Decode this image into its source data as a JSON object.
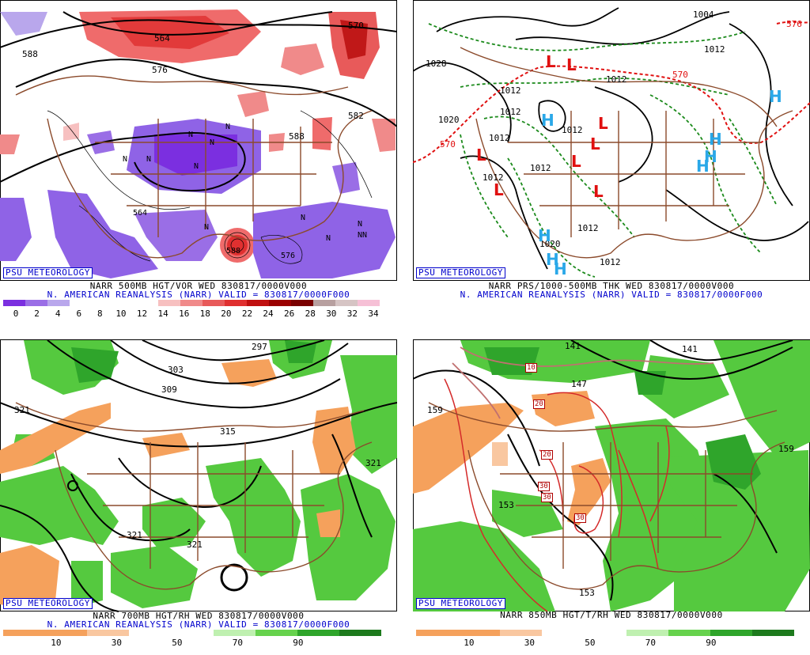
{
  "panels": [
    {
      "id": "p1",
      "badge": "PSU METEOROLOGY",
      "caption_line1": "NARR 500MB HGT/VOR WED 830817/0000V000",
      "caption_line2": "N. AMERICAN REANALYSIS (NARR) VALID = 830817/0000F000",
      "colorbar_colors": [
        "#7b2fe0",
        "#9a6ee6",
        "#b9a7ec",
        "#ffffff",
        "#ffffff",
        "#ffffff",
        "#ffffff",
        "#f7c0c0",
        "#f08a8a",
        "#e85a5a",
        "#e03030",
        "#c01010",
        "#9a0000",
        "#7a0000",
        "#b8a0a0",
        "#d6c4c4",
        "#f6c0d6"
      ],
      "colorbar_labels": [
        "0",
        "2",
        "4",
        "6",
        "8",
        "10",
        "12",
        "14",
        "16",
        "18",
        "20",
        "22",
        "24",
        "26",
        "28",
        "30",
        "32",
        "34"
      ],
      "map_labels": [
        "588",
        "576",
        "564",
        "570",
        "588",
        "582",
        "588",
        "N",
        "N",
        "N",
        "N",
        "N",
        "N",
        "N",
        "N",
        "N",
        "N",
        "NN",
        "576",
        "564"
      ]
    },
    {
      "id": "p2",
      "badge": "PSU METEOROLOGY",
      "caption_line1": "NARR PRS/1000-500MB THK WED 830817/0000V000",
      "caption_line2": "N. AMERICAN REANALYSIS (NARR) VALID = 830817/0000F000",
      "map_labels": [
        "1028",
        "1020",
        "1004",
        "1012",
        "1012",
        "1012",
        "1012",
        "1012",
        "1012",
        "1012",
        "1012",
        "1012",
        "1020",
        "1012",
        "570",
        "570",
        "576"
      ],
      "lows": [
        "L",
        "L",
        "L",
        "L",
        "L",
        "L",
        "L",
        "L"
      ],
      "highs": [
        "H",
        "H",
        "H",
        "H",
        "H",
        "H",
        "H",
        "H"
      ]
    },
    {
      "id": "p3",
      "badge": "PSU METEOROLOGY",
      "caption_line1": "NARR 700MB HGT/RH WED 830817/0000V000",
      "caption_line2": "N. AMERICAN REANALYSIS (NARR) VALID = 830817/0000F000",
      "colorbar_colors": [
        "#f5a15c",
        "#f5a15c",
        "#f9c7a0",
        "#ffffff",
        "#ffffff",
        "#bff0b0",
        "#66d24d",
        "#2fa52b",
        "#1d7a1d"
      ],
      "colorbar_labels": [
        "10",
        "30",
        "50",
        "70",
        "90"
      ],
      "map_labels": [
        "321",
        "303",
        "309",
        "315",
        "321",
        "321",
        "321",
        "297"
      ]
    },
    {
      "id": "p4",
      "badge": "PSU METEOROLOGY",
      "caption_line1": "NARR 850MB HGT/T/RH WED 830817/0000V000",
      "caption_line2": "",
      "colorbar_colors": [
        "#f5a15c",
        "#f5a15c",
        "#f9c7a0",
        "#ffffff",
        "#ffffff",
        "#bff0b0",
        "#66d24d",
        "#2fa52b",
        "#1d7a1d"
      ],
      "colorbar_labels": [
        "10",
        "30",
        "50",
        "70",
        "90"
      ],
      "map_labels": [
        "159",
        "141",
        "147",
        "141",
        "159",
        "153",
        "153",
        "10",
        "20",
        "20",
        "30",
        "30",
        "30"
      ]
    }
  ]
}
